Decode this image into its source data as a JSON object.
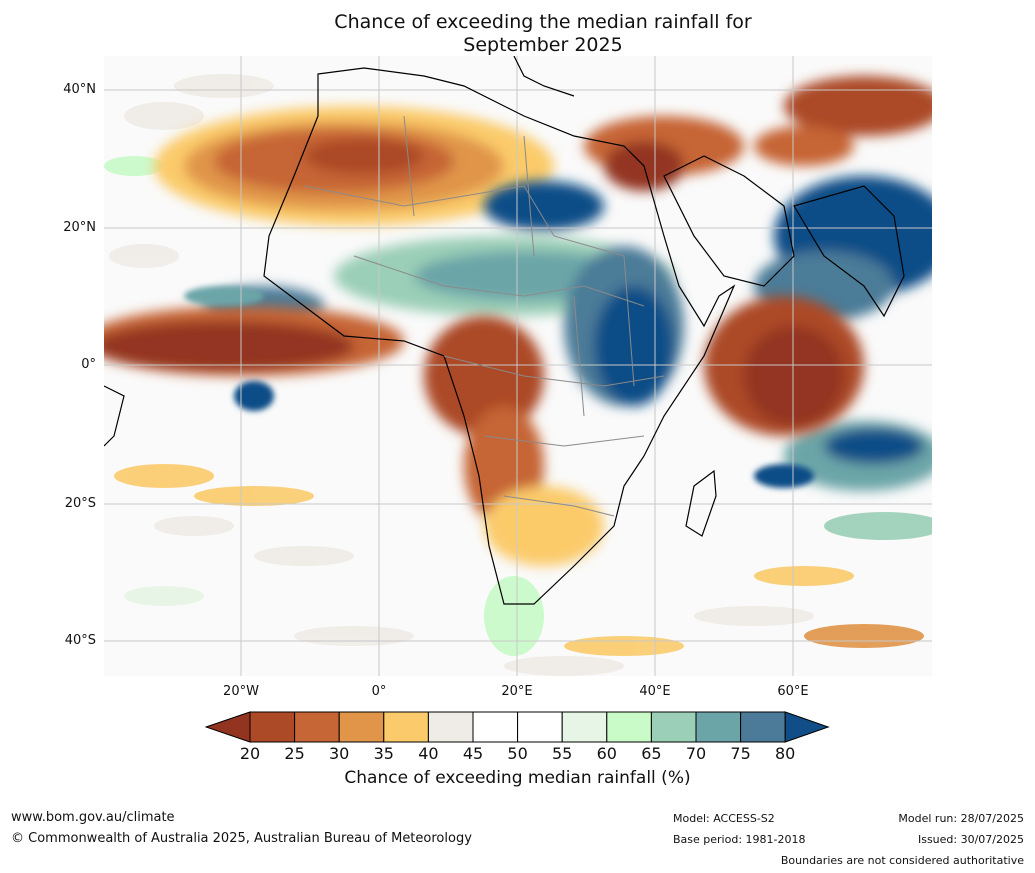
{
  "title": {
    "line1": "Chance of exceeding the median rainfall for",
    "line2": "September 2025"
  },
  "map": {
    "projection": "plate-carree",
    "lon_range": [
      -40,
      80
    ],
    "lat_range": [
      -45,
      45
    ],
    "lat_ticks": [
      "40°N",
      "20°N",
      "0°",
      "20°S",
      "40°S"
    ],
    "lon_ticks": [
      "20°W",
      "0°",
      "20°E",
      "40°E",
      "60°E"
    ],
    "grid": true,
    "land_color_scheme": "diverging brown-to-blue"
  },
  "colorbar": {
    "label": "Chance of exceeding median rainfall (%)",
    "ticks": [
      "20",
      "25",
      "30",
      "35",
      "40",
      "45",
      "50",
      "55",
      "60",
      "65",
      "70",
      "75",
      "80"
    ],
    "colors": [
      "#933421",
      "#ac4a27",
      "#c66536",
      "#e09548",
      "#fbcb6b",
      "#efebe6",
      "#ffffff",
      "#ffffff",
      "#e6f5e6",
      "#c8fbc8",
      "#9bcfb7",
      "#6ca5a8",
      "#4b7b98",
      "#114e87"
    ],
    "extend": "both"
  },
  "footer": {
    "website": "www.bom.gov.au/climate",
    "copyright": "© Commonwealth of Australia 2025, Australian Bureau of Meteorology",
    "model": "Model: ACCESS-S2",
    "base_period": "Base period: 1981-2018",
    "model_run": "Model run: 28/07/2025",
    "issued": "Issued: 30/07/2025",
    "disclaimer": "Boundaries are not considered authoritative"
  }
}
